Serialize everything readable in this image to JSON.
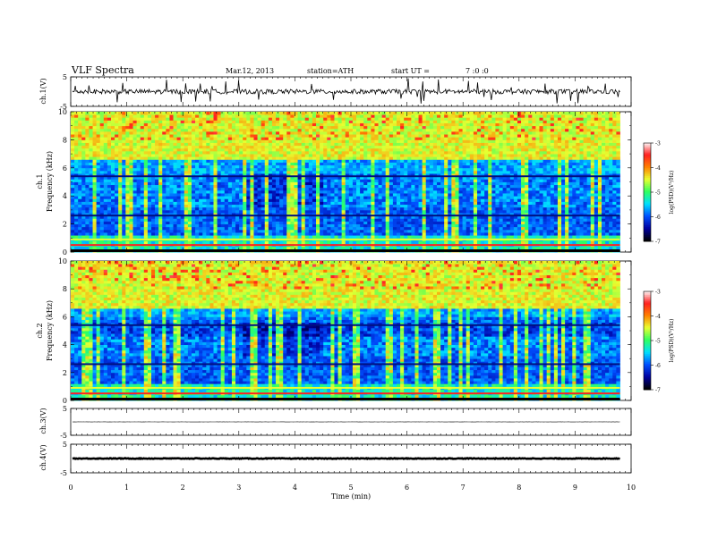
{
  "header": {
    "title": "VLF Spectra",
    "date": "Mar.12, 2013",
    "station": "station=ATH",
    "start_label": "start UT =",
    "start_time": "7 :0 :0"
  },
  "chart_data": {
    "type": "heatmap",
    "x_axis": {
      "label": "Time (min)",
      "range": [
        0,
        10
      ],
      "ticks": [
        "0",
        "1",
        "2",
        "3",
        "4",
        "5",
        "6",
        "7",
        "8",
        "9",
        "10"
      ]
    },
    "panels": [
      {
        "id": "ch1-waveform",
        "type": "line",
        "ylabel": "ch.1(V)",
        "yticks": [
          "5",
          "-5"
        ],
        "ylim": [
          -5,
          5
        ],
        "approx_level": 0
      },
      {
        "id": "ch1-spectrogram",
        "type": "heatmap",
        "ylabel": "ch.1",
        "ylabel2": "Frequency (kHz)",
        "yticks": [
          "0",
          "2",
          "4",
          "6",
          "8",
          "10"
        ],
        "ylim": [
          0,
          10
        ],
        "data_end_min": 9.8
      },
      {
        "id": "ch2-spectrogram",
        "type": "heatmap",
        "ylabel": "ch.2",
        "ylabel2": "Frequency (kHz)",
        "yticks": [
          "0",
          "2",
          "4",
          "6",
          "8",
          "10"
        ],
        "ylim": [
          0,
          10
        ],
        "data_end_min": 9.8
      },
      {
        "id": "ch3-waveform",
        "type": "line",
        "ylabel": "ch.3(V)",
        "yticks": [
          "5",
          "-5"
        ],
        "ylim": [
          -5,
          5
        ],
        "approx_level": 0
      },
      {
        "id": "ch4-waveform",
        "type": "line",
        "ylabel": "ch.4(V)",
        "yticks": [
          "5",
          "-5"
        ],
        "ylim": [
          -5,
          5
        ],
        "approx_level": 0
      }
    ],
    "colorbar": {
      "label": "log(PSD)(V²/Hz)",
      "ticks": [
        "-3",
        "-4",
        "-5",
        "-6",
        "-7"
      ],
      "range": [
        -7,
        -3
      ],
      "colors": [
        "#000000",
        "#0000a0",
        "#0050ff",
        "#00e0ff",
        "#30ff60",
        "#e8ff30",
        "#ff8000",
        "#ff2020",
        "#ffffff"
      ]
    }
  }
}
